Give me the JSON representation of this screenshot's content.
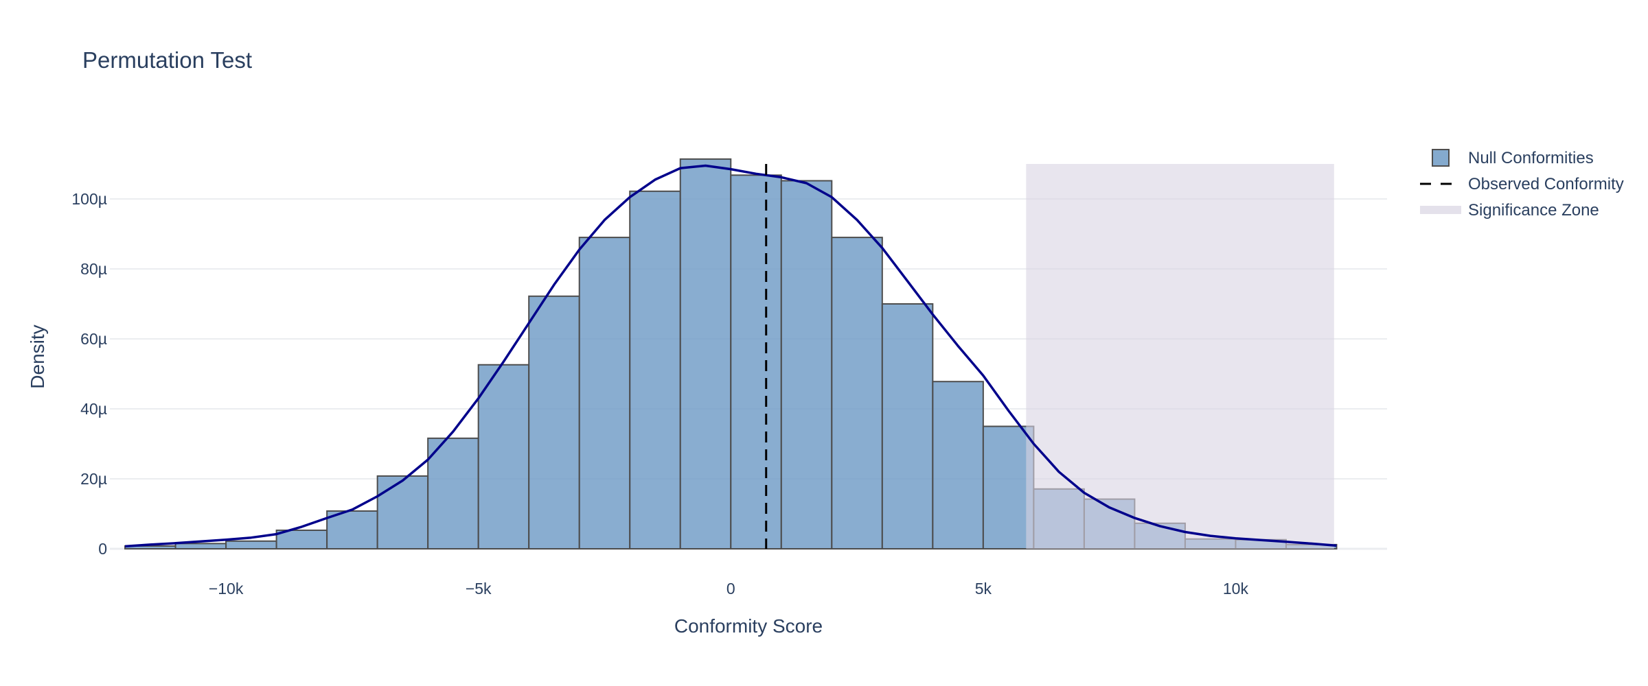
{
  "chart_data": {
    "type": "bar",
    "title": "Permutation Test",
    "xlabel": "Conformity Score",
    "ylabel": "Density",
    "xlim": [
      -12300,
      13000
    ],
    "ylim": [
      0,
      0.00011
    ],
    "grid": true,
    "legend_placement": "top-right",
    "x_ticks": [
      {
        "value": -10000,
        "label": "−10k"
      },
      {
        "value": -5000,
        "label": "−5k"
      },
      {
        "value": 0,
        "label": "0"
      },
      {
        "value": 5000,
        "label": "5k"
      },
      {
        "value": 10000,
        "label": "10k"
      }
    ],
    "y_ticks": [
      {
        "value": 0,
        "label": "0"
      },
      {
        "value": 2e-05,
        "label": "20µ"
      },
      {
        "value": 4e-05,
        "label": "40µ"
      },
      {
        "value": 6e-05,
        "label": "60µ"
      },
      {
        "value": 8e-05,
        "label": "80µ"
      },
      {
        "value": 0.0001,
        "label": "100µ"
      }
    ],
    "histogram": {
      "name": "Null Conformities",
      "bin_edges": [
        -12000,
        -11000,
        -10000,
        -9000,
        -8000,
        -7000,
        -6000,
        -5000,
        -4000,
        -3000,
        -2000,
        -1000,
        0,
        1000,
        2000,
        3000,
        4000,
        5000,
        6000,
        7000,
        8000,
        9000,
        10000,
        11000,
        12000
      ],
      "values": [
        8e-07,
        1.5e-06,
        2.2e-06,
        5.3e-06,
        1.08e-05,
        2.08e-05,
        3.16e-05,
        5.26e-05,
        7.22e-05,
        8.9e-05,
        0.0001022,
        0.0001114,
        0.0001068,
        0.0001052,
        8.9e-05,
        7e-05,
        4.78e-05,
        3.5e-05,
        1.71e-05,
        1.42e-05,
        7.3e-06,
        2.8e-06,
        2.6e-06,
        1.2e-06
      ]
    },
    "kde": {
      "x": [
        -12000,
        -11500,
        -11000,
        -10500,
        -10000,
        -9500,
        -9000,
        -8500,
        -8000,
        -7500,
        -7000,
        -6500,
        -6000,
        -5500,
        -5000,
        -4500,
        -4000,
        -3500,
        -3000,
        -2500,
        -2000,
        -1500,
        -1000,
        -500,
        0,
        500,
        1000,
        1500,
        2000,
        2500,
        3000,
        3500,
        4000,
        4500,
        5000,
        5500,
        6000,
        6500,
        7000,
        7500,
        8000,
        8500,
        9000,
        9500,
        10000,
        10500,
        11000,
        11500,
        12000
      ],
      "y": [
        7e-07,
        1.2e-06,
        1.6e-06,
        2.1e-06,
        2.6e-06,
        3.2e-06,
        4.2e-06,
        6.3e-06,
        8.8e-06,
        1.12e-05,
        1.5e-05,
        1.95e-05,
        2.55e-05,
        3.35e-05,
        4.3e-05,
        5.35e-05,
        6.45e-05,
        7.55e-05,
        8.55e-05,
        9.4e-05,
        0.0001005,
        0.0001055,
        0.0001088,
        0.0001095,
        0.0001085,
        0.0001072,
        0.0001062,
        0.0001045,
        0.0001005,
        9.4e-05,
        8.6e-05,
        7.65e-05,
        6.7e-05,
        5.8e-05,
        4.95e-05,
        3.95e-05,
        3e-05,
        2.2e-05,
        1.6e-05,
        1.18e-05,
        8.8e-06,
        6.5e-06,
        4.8e-06,
        3.7e-06,
        3e-06,
        2.5e-06,
        2e-06,
        1.5e-06,
        9e-07
      ]
    },
    "observed": {
      "name": "Observed Conformity",
      "x": 700
    },
    "significance_zone": {
      "name": "Significance Zone",
      "x0": 5850,
      "x1": 11950,
      "y1": 0.00011
    },
    "legend": [
      {
        "kind": "histogram",
        "label": "Null Conformities"
      },
      {
        "kind": "dashed-line",
        "label": "Observed Conformity"
      },
      {
        "kind": "zone",
        "label": "Significance Zone"
      }
    ],
    "colors": {
      "bar_fill": "#6f9bc6",
      "bar_stroke": "#4d4d4d",
      "kde": "#00008b",
      "observed_line": "#000000",
      "zone": "#d9d4e2",
      "grid": "#ebedf0",
      "text": "#2a3f5f"
    }
  }
}
